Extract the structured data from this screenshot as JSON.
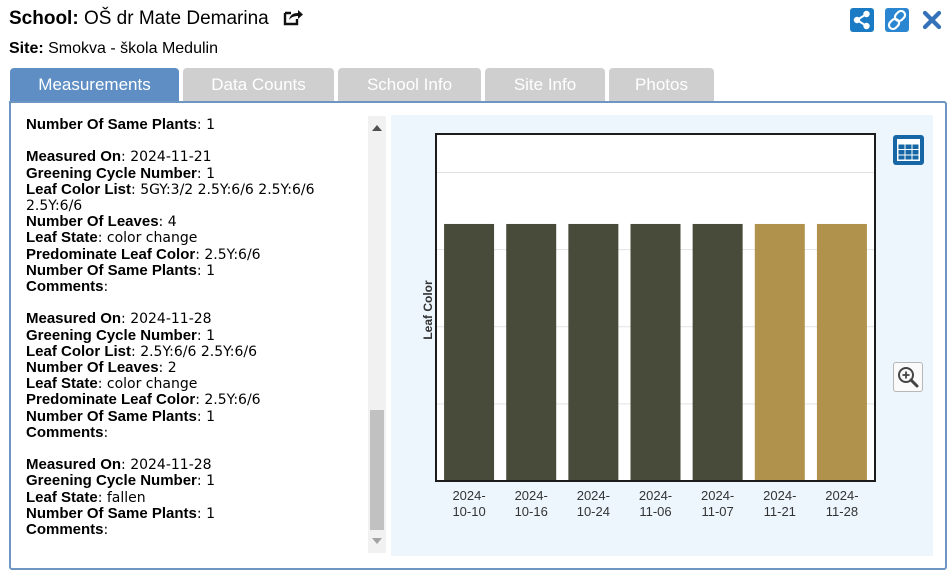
{
  "header": {
    "school_label": "School:",
    "school_name": "OŠ dr Mate Demarina",
    "site_label": "Site:",
    "site_name": "Smokva - škola Medulin"
  },
  "tabs": [
    {
      "label": "Measurements",
      "active": true
    },
    {
      "label": "Data Counts",
      "active": false
    },
    {
      "label": "School Info",
      "active": false
    },
    {
      "label": "Site Info",
      "active": false
    },
    {
      "label": "Photos",
      "active": false
    }
  ],
  "icons": {
    "external": "external-link-icon",
    "share": "share-icon",
    "link": "link-icon",
    "close": "close-icon",
    "table": "table-icon",
    "zoom": "zoom-in-icon"
  },
  "colors": {
    "tab_active": "#5e8ec4",
    "tab_inactive": "#cfcfcf",
    "panel_border": "#6d96c2",
    "chart_bg": "#eef6fd",
    "button_blue": "#1a7ac4",
    "close_blue": "#3571b8"
  },
  "measurements": [
    {
      "lines": [
        {
          "label": "Number Of Same Plants",
          "value": "1"
        }
      ]
    },
    {
      "lines": [
        {
          "label": "Measured On",
          "value": "2024-11-21"
        },
        {
          "label": "Greening Cycle Number",
          "value": "1"
        },
        {
          "label": "Leaf Color List",
          "value": "5GY:3/2 2.5Y:6/6 2.5Y:6/6 2.5Y:6/6"
        },
        {
          "label": "Number Of Leaves",
          "value": "4"
        },
        {
          "label": "Leaf State",
          "value": "color change"
        },
        {
          "label": "Predominate Leaf Color",
          "value": "2.5Y:6/6"
        },
        {
          "label": "Number Of Same Plants",
          "value": "1"
        },
        {
          "label": "Comments",
          "value": ""
        }
      ]
    },
    {
      "lines": [
        {
          "label": "Measured On",
          "value": "2024-11-28"
        },
        {
          "label": "Greening Cycle Number",
          "value": "1"
        },
        {
          "label": "Leaf Color List",
          "value": "2.5Y:6/6 2.5Y:6/6"
        },
        {
          "label": "Number Of Leaves",
          "value": "2"
        },
        {
          "label": "Leaf State",
          "value": "color change"
        },
        {
          "label": "Predominate Leaf Color",
          "value": "2.5Y:6/6"
        },
        {
          "label": "Number Of Same Plants",
          "value": "1"
        },
        {
          "label": "Comments",
          "value": ""
        }
      ]
    },
    {
      "lines": [
        {
          "label": "Measured On",
          "value": "2024-11-28"
        },
        {
          "label": "Greening Cycle Number",
          "value": "1"
        },
        {
          "label": "Leaf State",
          "value": "fallen"
        },
        {
          "label": "Number Of Same Plants",
          "value": "1"
        },
        {
          "label": "Comments",
          "value": ""
        }
      ]
    }
  ],
  "chart_data": {
    "type": "bar",
    "ylabel": "Leaf Color",
    "categories": [
      "2024-10-10",
      "2024-10-16",
      "2024-10-24",
      "2024-11-06",
      "2024-11-07",
      "2024-11-21",
      "2024-11-28"
    ],
    "tick_labels": [
      [
        "2024-",
        "10-10"
      ],
      [
        "2024-",
        "10-16"
      ],
      [
        "2024-",
        "10-24"
      ],
      [
        "2024-",
        "11-06"
      ],
      [
        "2024-",
        "11-07"
      ],
      [
        "2024-",
        "11-21"
      ],
      [
        "2024-",
        "11-28"
      ]
    ],
    "values": [
      1,
      1,
      1,
      1,
      1,
      1,
      1
    ],
    "ylim": [
      0,
      1.35
    ],
    "yticks": [
      0.3,
      0.6,
      0.9,
      1.2
    ],
    "bar_colors": [
      "#484b3a",
      "#484b3a",
      "#484b3a",
      "#484b3a",
      "#484b3a",
      "#b1924c",
      "#b1924c"
    ],
    "grid": true,
    "legend": "none"
  }
}
